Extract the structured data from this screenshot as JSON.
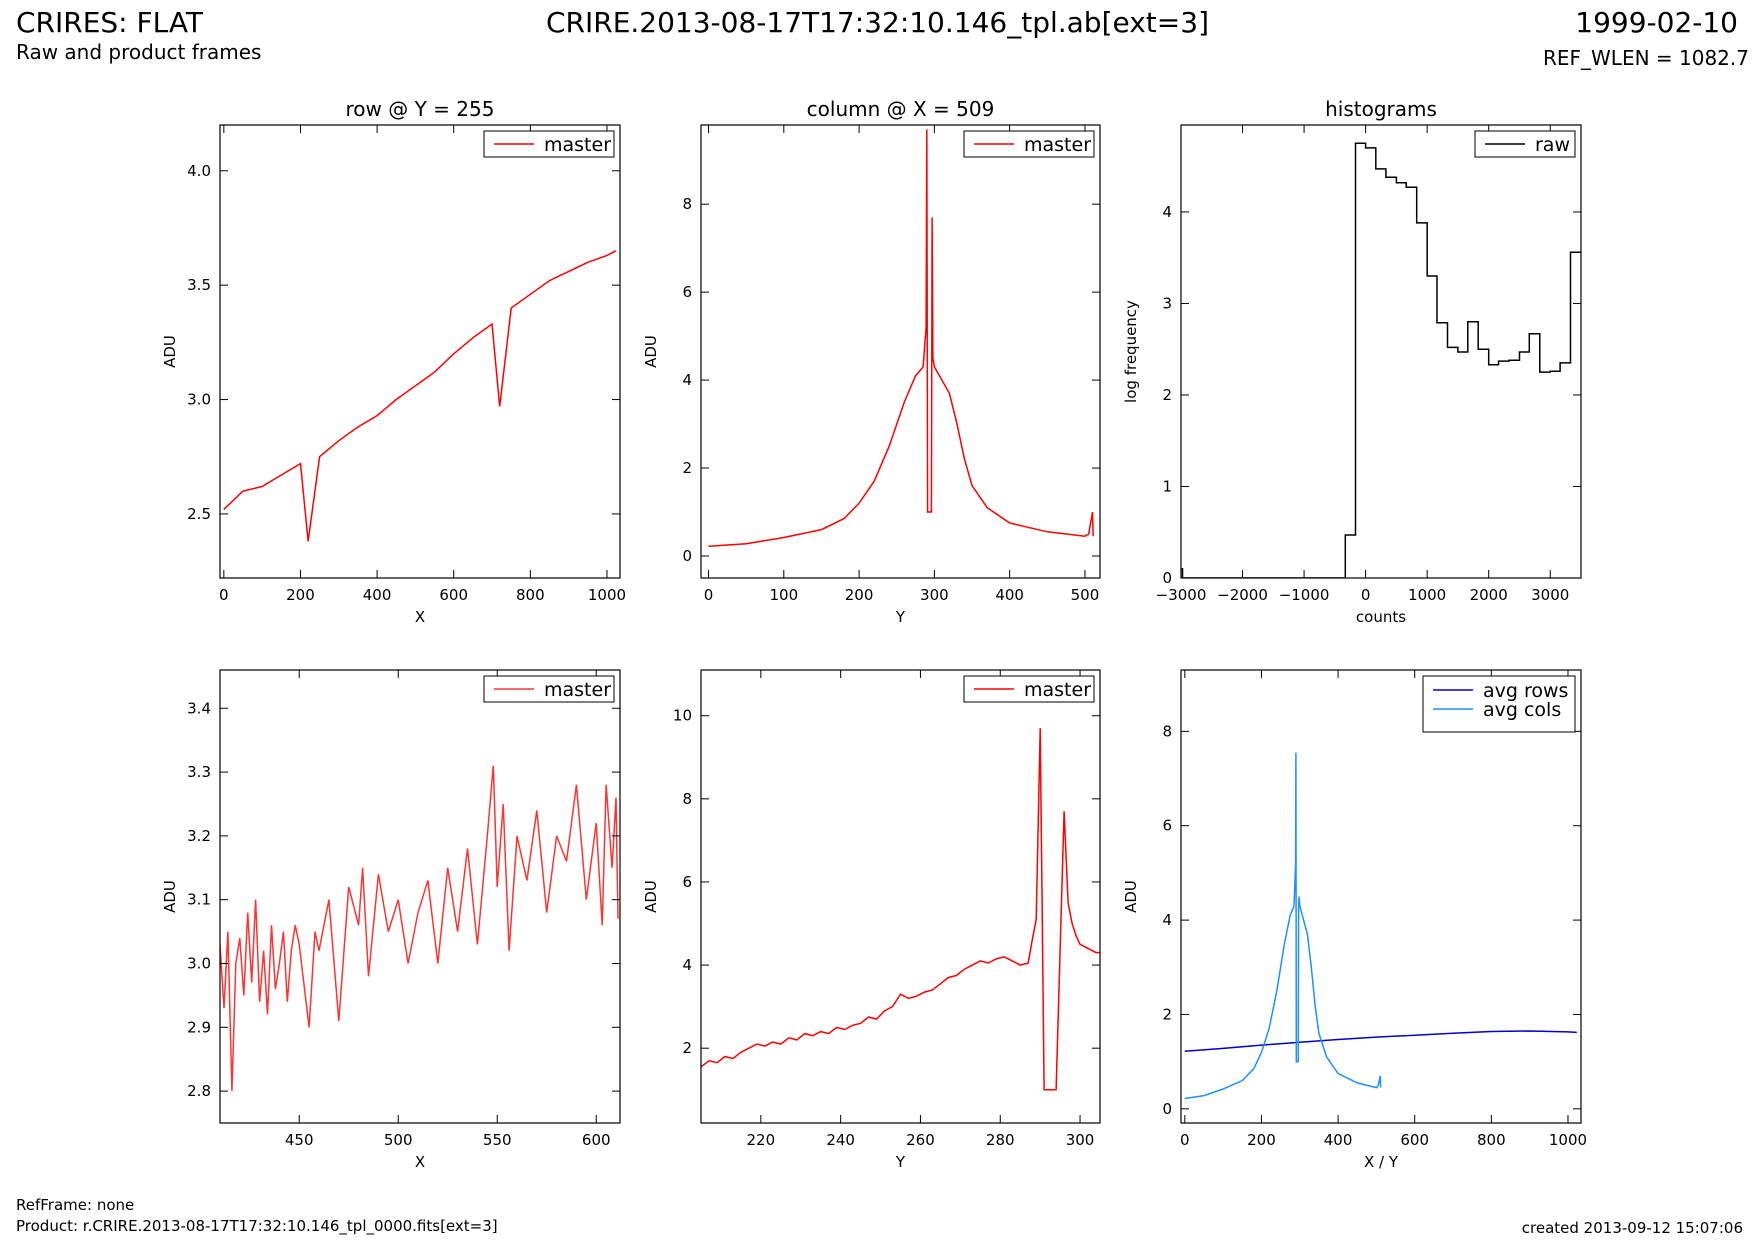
{
  "header": {
    "title": "CRIRES: FLAT",
    "subtitle": "Raw and product frames",
    "center_title": "CRIRE.2013-08-17T17:32:10.146_tpl.ab[ext=3]",
    "date": "1999-02-10",
    "ref_wlen": "REF_WLEN = 1082.7"
  },
  "footer": {
    "ref_frame": "RefFrame: none",
    "product": "Product: r.CRIRE.2013-08-17T17:32:10.146_tpl_0000.fits[ext=3]",
    "created": "created 2013-09-12 15:07:06"
  },
  "colors": {
    "red": "#ff0000",
    "light_red": "#ff3333",
    "black": "#000000",
    "blue": "#0000cc",
    "light_blue": "#1e90ff"
  },
  "chart_data": [
    {
      "id": "row",
      "type": "line",
      "title": "row @ Y = 255",
      "xlabel": "X",
      "ylabel": "ADU",
      "xlim": [
        -10,
        1034
      ],
      "ylim": [
        2.22,
        4.2
      ],
      "xticks": [
        0,
        200,
        400,
        600,
        800,
        1000
      ],
      "yticks": [
        2.5,
        3.0,
        3.5,
        4.0
      ],
      "ytick_labels": [
        "2.5",
        "3.0",
        "3.5",
        "4.0"
      ],
      "legend": "top-right",
      "series": [
        {
          "name": "master",
          "color": "#ff0000",
          "x": [
            0,
            50,
            100,
            150,
            200,
            220,
            250,
            300,
            350,
            400,
            450,
            500,
            550,
            600,
            650,
            700,
            720,
            750,
            800,
            850,
            900,
            950,
            1000,
            1023
          ],
          "y": [
            2.52,
            2.6,
            2.62,
            2.67,
            2.72,
            2.38,
            2.75,
            2.82,
            2.88,
            2.93,
            3.0,
            3.06,
            3.12,
            3.2,
            3.27,
            3.33,
            2.97,
            3.4,
            3.46,
            3.52,
            3.56,
            3.6,
            3.63,
            3.65
          ]
        }
      ]
    },
    {
      "id": "column",
      "type": "line",
      "title": "column @ X = 509",
      "xlabel": "Y",
      "ylabel": "ADU",
      "xlim": [
        -10,
        520
      ],
      "ylim": [
        -0.5,
        9.8
      ],
      "xticks": [
        0,
        100,
        200,
        300,
        400,
        500
      ],
      "yticks": [
        0,
        2,
        4,
        6,
        8
      ],
      "legend": "top-right",
      "series": [
        {
          "name": "master",
          "color": "#ff0000",
          "x": [
            0,
            50,
            100,
            150,
            180,
            200,
            220,
            240,
            260,
            275,
            285,
            289,
            290,
            291,
            292,
            296,
            297,
            298,
            300,
            310,
            320,
            330,
            340,
            350,
            370,
            400,
            450,
            500,
            505,
            510,
            511
          ],
          "y": [
            0.22,
            0.28,
            0.42,
            0.6,
            0.85,
            1.2,
            1.7,
            2.5,
            3.5,
            4.1,
            4.3,
            5.2,
            9.7,
            1.0,
            1.0,
            1.0,
            7.7,
            4.5,
            4.3,
            4.0,
            3.7,
            3.0,
            2.2,
            1.6,
            1.1,
            0.75,
            0.55,
            0.45,
            0.5,
            1.0,
            0.45
          ]
        }
      ]
    },
    {
      "id": "histograms",
      "type": "line",
      "title": "histograms",
      "xlabel": "counts",
      "ylabel": "log frequency",
      "xlim": [
        -3000,
        3500
      ],
      "ylim": [
        0,
        4.95
      ],
      "xticks": [
        -3000,
        -2000,
        -1000,
        0,
        1000,
        2000,
        3000
      ],
      "xtick_labels": [
        "−3000",
        "−2000",
        "−1000",
        "0",
        "1000",
        "2000",
        "3000"
      ],
      "yticks": [
        0,
        1,
        2,
        3,
        4
      ],
      "legend": "top-right",
      "series": [
        {
          "name": "raw",
          "color": "#000000",
          "step": true,
          "x": [
            -3000,
            -2975,
            -2975,
            -330,
            -330,
            -165,
            -165,
            0,
            0,
            165,
            165,
            330,
            330,
            500,
            500,
            660,
            660,
            830,
            830,
            1000,
            1000,
            1160,
            1160,
            1330,
            1330,
            1500,
            1500,
            1660,
            1660,
            1830,
            1830,
            2000,
            2000,
            2160,
            2160,
            2330,
            2330,
            2500,
            2500,
            2660,
            2660,
            2830,
            2830,
            3000,
            3000,
            3160,
            3160,
            3330,
            3330,
            3500
          ],
          "y": [
            0.1,
            0.1,
            0,
            0,
            0.47,
            0.47,
            4.75,
            4.75,
            4.7,
            4.7,
            4.47,
            4.47,
            4.38,
            4.38,
            4.32,
            4.32,
            4.27,
            4.27,
            3.88,
            3.88,
            3.3,
            3.3,
            2.79,
            2.79,
            2.52,
            2.52,
            2.47,
            2.47,
            2.8,
            2.8,
            2.5,
            2.5,
            2.33,
            2.33,
            2.37,
            2.37,
            2.38,
            2.38,
            2.47,
            2.47,
            2.67,
            2.67,
            2.25,
            2.25,
            2.26,
            2.26,
            2.35,
            2.35,
            3.56,
            3.56
          ]
        }
      ]
    },
    {
      "id": "row_zoom",
      "type": "line",
      "title": "",
      "xlabel": "X",
      "ylabel": "ADU",
      "xlim": [
        410,
        612
      ],
      "ylim": [
        2.75,
        3.46
      ],
      "xticks": [
        450,
        500,
        550,
        600
      ],
      "yticks": [
        2.8,
        2.9,
        3.0,
        3.1,
        3.2,
        3.3,
        3.4
      ],
      "ytick_labels": [
        "2.8",
        "2.9",
        "3.0",
        "3.1",
        "3.2",
        "3.3",
        "3.4"
      ],
      "legend": "top-right",
      "series": [
        {
          "name": "master",
          "color": "#ff3333",
          "step": true,
          "x": [
            410,
            412,
            414,
            416,
            418,
            420,
            422,
            424,
            426,
            428,
            430,
            432,
            434,
            436,
            438,
            440,
            442,
            444,
            446,
            448,
            450,
            455,
            458,
            460,
            465,
            470,
            475,
            480,
            482,
            485,
            490,
            495,
            500,
            505,
            510,
            515,
            520,
            525,
            530,
            535,
            540,
            545,
            548,
            550,
            553,
            556,
            560,
            565,
            570,
            575,
            580,
            585,
            590,
            595,
            600,
            603,
            605,
            608,
            610,
            611
          ],
          "y": [
            3.03,
            2.93,
            3.05,
            2.8,
            3.0,
            3.04,
            2.95,
            3.08,
            2.97,
            3.1,
            2.94,
            3.02,
            2.92,
            3.06,
            2.96,
            3.0,
            3.05,
            2.94,
            3.02,
            3.06,
            3.03,
            2.9,
            3.05,
            3.02,
            3.1,
            2.91,
            3.12,
            3.06,
            3.15,
            2.98,
            3.14,
            3.05,
            3.1,
            3.0,
            3.08,
            3.13,
            3.0,
            3.15,
            3.05,
            3.18,
            3.03,
            3.2,
            3.31,
            3.12,
            3.25,
            3.02,
            3.2,
            3.13,
            3.24,
            3.08,
            3.2,
            3.16,
            3.28,
            3.1,
            3.22,
            3.06,
            3.28,
            3.15,
            3.26,
            3.07
          ]
        }
      ]
    },
    {
      "id": "column_zoom",
      "type": "line",
      "title": "",
      "xlabel": "Y",
      "ylabel": "ADU",
      "xlim": [
        205,
        305
      ],
      "ylim": [
        0.2,
        11.1
      ],
      "xticks": [
        220,
        240,
        260,
        280,
        300
      ],
      "yticks": [
        2,
        4,
        6,
        8,
        10
      ],
      "legend": "top-right",
      "series": [
        {
          "name": "master",
          "color": "#ff0000",
          "step": true,
          "x": [
            205,
            207,
            209,
            211,
            213,
            215,
            217,
            219,
            221,
            223,
            225,
            227,
            229,
            231,
            233,
            235,
            237,
            239,
            241,
            243,
            245,
            247,
            249,
            251,
            253,
            255,
            257,
            259,
            261,
            263,
            265,
            267,
            269,
            271,
            273,
            275,
            277,
            279,
            281,
            283,
            285,
            287,
            288,
            289,
            290,
            291,
            292,
            294,
            296,
            297,
            298,
            299,
            300,
            302,
            304,
            305
          ],
          "y": [
            1.55,
            1.7,
            1.65,
            1.8,
            1.75,
            1.9,
            2.0,
            2.1,
            2.05,
            2.15,
            2.1,
            2.25,
            2.2,
            2.35,
            2.3,
            2.4,
            2.35,
            2.5,
            2.45,
            2.55,
            2.6,
            2.75,
            2.7,
            2.9,
            3.0,
            3.3,
            3.2,
            3.25,
            3.35,
            3.4,
            3.55,
            3.7,
            3.75,
            3.9,
            4.0,
            4.1,
            4.05,
            4.15,
            4.2,
            4.1,
            4.0,
            4.05,
            4.6,
            5.1,
            9.7,
            1.0,
            1.0,
            1.0,
            7.7,
            5.5,
            5.0,
            4.7,
            4.5,
            4.4,
            4.3,
            4.3
          ]
        }
      ]
    },
    {
      "id": "averages",
      "type": "line",
      "title": "",
      "xlabel": "X / Y",
      "ylabel": "ADU",
      "xlim": [
        -10,
        1034
      ],
      "ylim": [
        -0.3,
        9.3
      ],
      "xticks": [
        0,
        200,
        400,
        600,
        800,
        1000
      ],
      "yticks": [
        0,
        2,
        4,
        6,
        8
      ],
      "legend": "top-right",
      "series": [
        {
          "name": "avg rows",
          "color": "#0000cc",
          "x": [
            0,
            100,
            200,
            300,
            400,
            500,
            600,
            700,
            800,
            900,
            1000,
            1023
          ],
          "y": [
            1.22,
            1.28,
            1.35,
            1.41,
            1.47,
            1.52,
            1.56,
            1.6,
            1.64,
            1.65,
            1.63,
            1.62
          ]
        },
        {
          "name": "avg cols",
          "color": "#1e90ff",
          "x": [
            0,
            50,
            100,
            150,
            180,
            200,
            220,
            240,
            260,
            275,
            285,
            289,
            290,
            291,
            292,
            296,
            297,
            298,
            300,
            310,
            320,
            330,
            340,
            350,
            370,
            400,
            450,
            500,
            505,
            510,
            511
          ],
          "y": [
            0.22,
            0.28,
            0.42,
            0.6,
            0.85,
            1.2,
            1.7,
            2.5,
            3.5,
            4.1,
            4.3,
            5.2,
            7.55,
            1.0,
            1.0,
            1.0,
            4.2,
            4.5,
            4.3,
            4.0,
            3.7,
            3.0,
            2.2,
            1.6,
            1.1,
            0.75,
            0.55,
            0.45,
            0.5,
            0.7,
            0.45
          ]
        }
      ]
    }
  ]
}
